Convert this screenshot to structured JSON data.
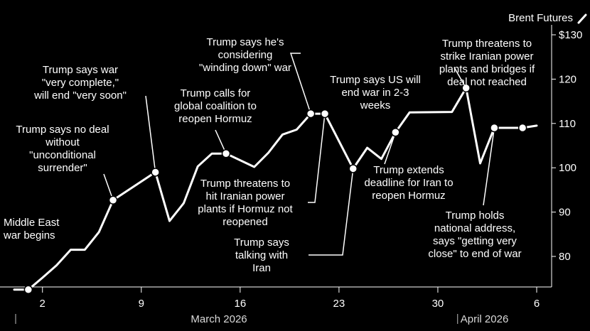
{
  "chart_data": {
    "type": "line",
    "title": "",
    "series": [
      {
        "name": "Brent Futures",
        "points": [
          {
            "day": -1,
            "value": 72.5
          },
          {
            "day": 0,
            "value": 72.5
          },
          {
            "day": 1,
            "value": 75.2
          },
          {
            "day": 2,
            "value": 78.0
          },
          {
            "day": 3,
            "value": 81.5
          },
          {
            "day": 4,
            "value": 81.5
          },
          {
            "day": 5,
            "value": 85.5
          },
          {
            "day": 6,
            "value": 92.7
          },
          {
            "day": 9,
            "value": 99.0
          },
          {
            "day": 10,
            "value": 88.0
          },
          {
            "day": 11,
            "value": 92.0
          },
          {
            "day": 12,
            "value": 100.3
          },
          {
            "day": 13,
            "value": 103.2
          },
          {
            "day": 14,
            "value": 103.2
          },
          {
            "day": 16,
            "value": 100.2
          },
          {
            "day": 17,
            "value": 103.4
          },
          {
            "day": 18,
            "value": 107.5
          },
          {
            "day": 19,
            "value": 108.6
          },
          {
            "day": 20,
            "value": 112.2
          },
          {
            "day": 21,
            "value": 112.2
          },
          {
            "day": 23,
            "value": 99.8
          },
          {
            "day": 24,
            "value": 104.5
          },
          {
            "day": 25,
            "value": 102.0
          },
          {
            "day": 26,
            "value": 108.0
          },
          {
            "day": 27,
            "value": 112.5
          },
          {
            "day": 30,
            "value": 112.6
          },
          {
            "day": 31,
            "value": 118.0
          },
          {
            "day": 32,
            "value": 101.0
          },
          {
            "day": 33,
            "value": 109.0
          },
          {
            "day": 35,
            "value": 109.0
          },
          {
            "day": 36,
            "value": 109.5
          }
        ]
      }
    ],
    "x_ticks": [
      {
        "day": 1,
        "label": "2"
      },
      {
        "day": 8,
        "label": "9"
      },
      {
        "day": 15,
        "label": "16"
      },
      {
        "day": 22,
        "label": "23"
      },
      {
        "day": 29,
        "label": "30"
      },
      {
        "day": 36,
        "label": "6"
      }
    ],
    "month_labels": [
      {
        "day": 0,
        "label": "March 2026",
        "align": "center"
      },
      {
        "day": 31,
        "label": "April 2026",
        "align": "start"
      }
    ],
    "y_ticks": [
      {
        "value": 80,
        "label": "80"
      },
      {
        "value": 90,
        "label": "90"
      },
      {
        "value": 100,
        "label": "100"
      },
      {
        "value": 110,
        "label": "110"
      },
      {
        "value": 120,
        "label": "120"
      },
      {
        "value": 130,
        "label": "$130"
      }
    ],
    "ylim": [
      71,
      132
    ],
    "xlim": [
      -1.5,
      36.5
    ],
    "legend": {
      "label": "Brent Futures",
      "position": "top-right"
    },
    "annotations": [
      {
        "id": "middle-east-war",
        "day": 0,
        "value": 72.5,
        "lines": [
          "Middle East",
          "war begins"
        ]
      },
      {
        "id": "no-deal",
        "day": 6,
        "value": 92.7,
        "lines": [
          "Trump says no deal",
          "without",
          "\"unconditional",
          "surrender\""
        ]
      },
      {
        "id": "very-complete",
        "day": 9,
        "value": 99.0,
        "lines": [
          "Trump says war",
          "\"very complete,\"",
          "will end \"very soon\""
        ]
      },
      {
        "id": "global-coalition",
        "day": 14,
        "value": 103.2,
        "lines": [
          "Trump calls for",
          "global coalition to",
          "reopen Hormuz"
        ]
      },
      {
        "id": "winding-down",
        "day": 20,
        "value": 112.2,
        "lines": [
          "Trump says he's",
          "considering",
          "\"winding down\" war"
        ]
      },
      {
        "id": "threatens-power-plants",
        "day": 21,
        "value": 112.2,
        "lines": [
          "Trump threatens to",
          "hit Iranian power",
          "plants if Hormuz not",
          "reopened"
        ]
      },
      {
        "id": "talking-with-iran",
        "day": 23,
        "value": 99.8,
        "lines": [
          "Trump says",
          "talking with",
          "Iran"
        ]
      },
      {
        "id": "end-war-weeks",
        "day": 26,
        "value": 108.0,
        "lines": [
          "Trump says US will",
          "end war in 2-3",
          "weeks"
        ]
      },
      {
        "id": "extends-deadline",
        "day": 26,
        "value": 108.0,
        "lines": [
          "Trump extends",
          "deadline for Iran to",
          "reopen Hormuz"
        ]
      },
      {
        "id": "strike-bridges",
        "day": 31,
        "value": 118.0,
        "lines": [
          "Trump threatens to",
          "strike Iranian power",
          "plants and bridges if",
          "deal not reached"
        ]
      },
      {
        "id": "national-address",
        "day": 33,
        "value": 109.0,
        "lines": [
          "Trump holds",
          "national address,",
          "says \"getting very",
          "close\" to end of war"
        ]
      },
      {
        "id": "latest-point",
        "day": 35,
        "value": 109.0,
        "lines": []
      }
    ],
    "colors": {
      "background": "#000000",
      "line": "#ffffff",
      "text": "#ffffff",
      "axis": "#ffffff"
    }
  }
}
